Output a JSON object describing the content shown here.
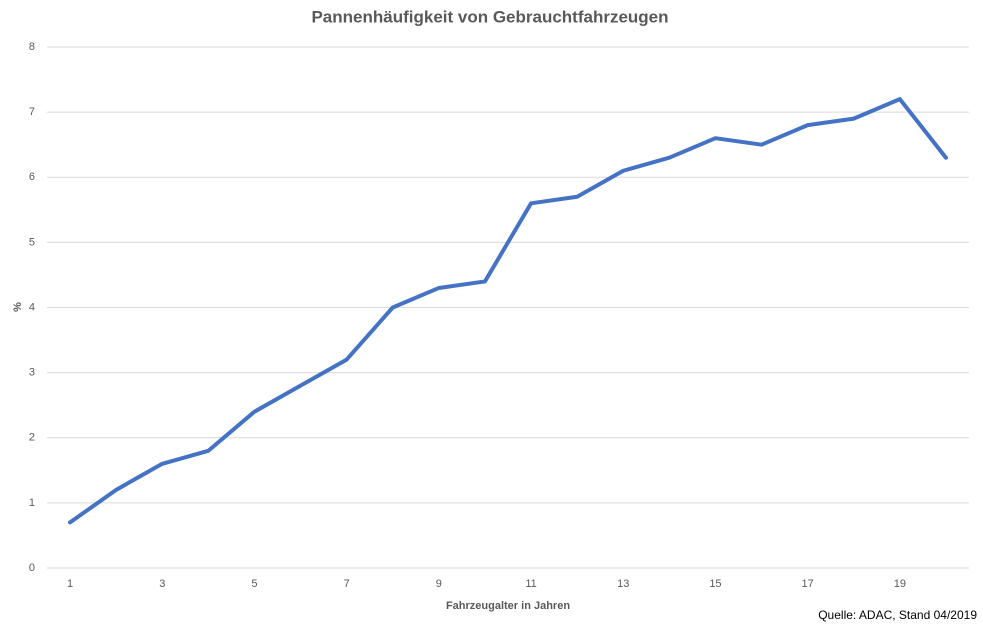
{
  "chart_data": {
    "type": "line",
    "title": "Pannenhäufigkeit von Gebrauchtfahrzeugen",
    "x_label": "Fahrzeugalter in Jahren",
    "y_label": "%",
    "source": "Quelle: ADAC, Stand 04/2019",
    "categories": [
      "1",
      null,
      "3",
      null,
      "5",
      null,
      "7",
      null,
      "9",
      null,
      "11",
      null,
      "13",
      null,
      "15",
      null,
      "17",
      null,
      "19",
      null
    ],
    "series": [
      {
        "name": "Pannenhäufigkeit",
        "color": "#4472c4",
        "values": [
          0.7,
          1.2,
          1.6,
          1.8,
          2.4,
          2.8,
          3.2,
          4.0,
          4.3,
          4.4,
          5.6,
          5.7,
          6.1,
          6.3,
          6.6,
          6.5,
          6.8,
          6.9,
          7.2,
          6.3
        ]
      }
    ],
    "ylim": [
      0,
      8
    ],
    "yticks": [
      0,
      1,
      2,
      3,
      4,
      5,
      6,
      7,
      8
    ],
    "grid": true
  }
}
